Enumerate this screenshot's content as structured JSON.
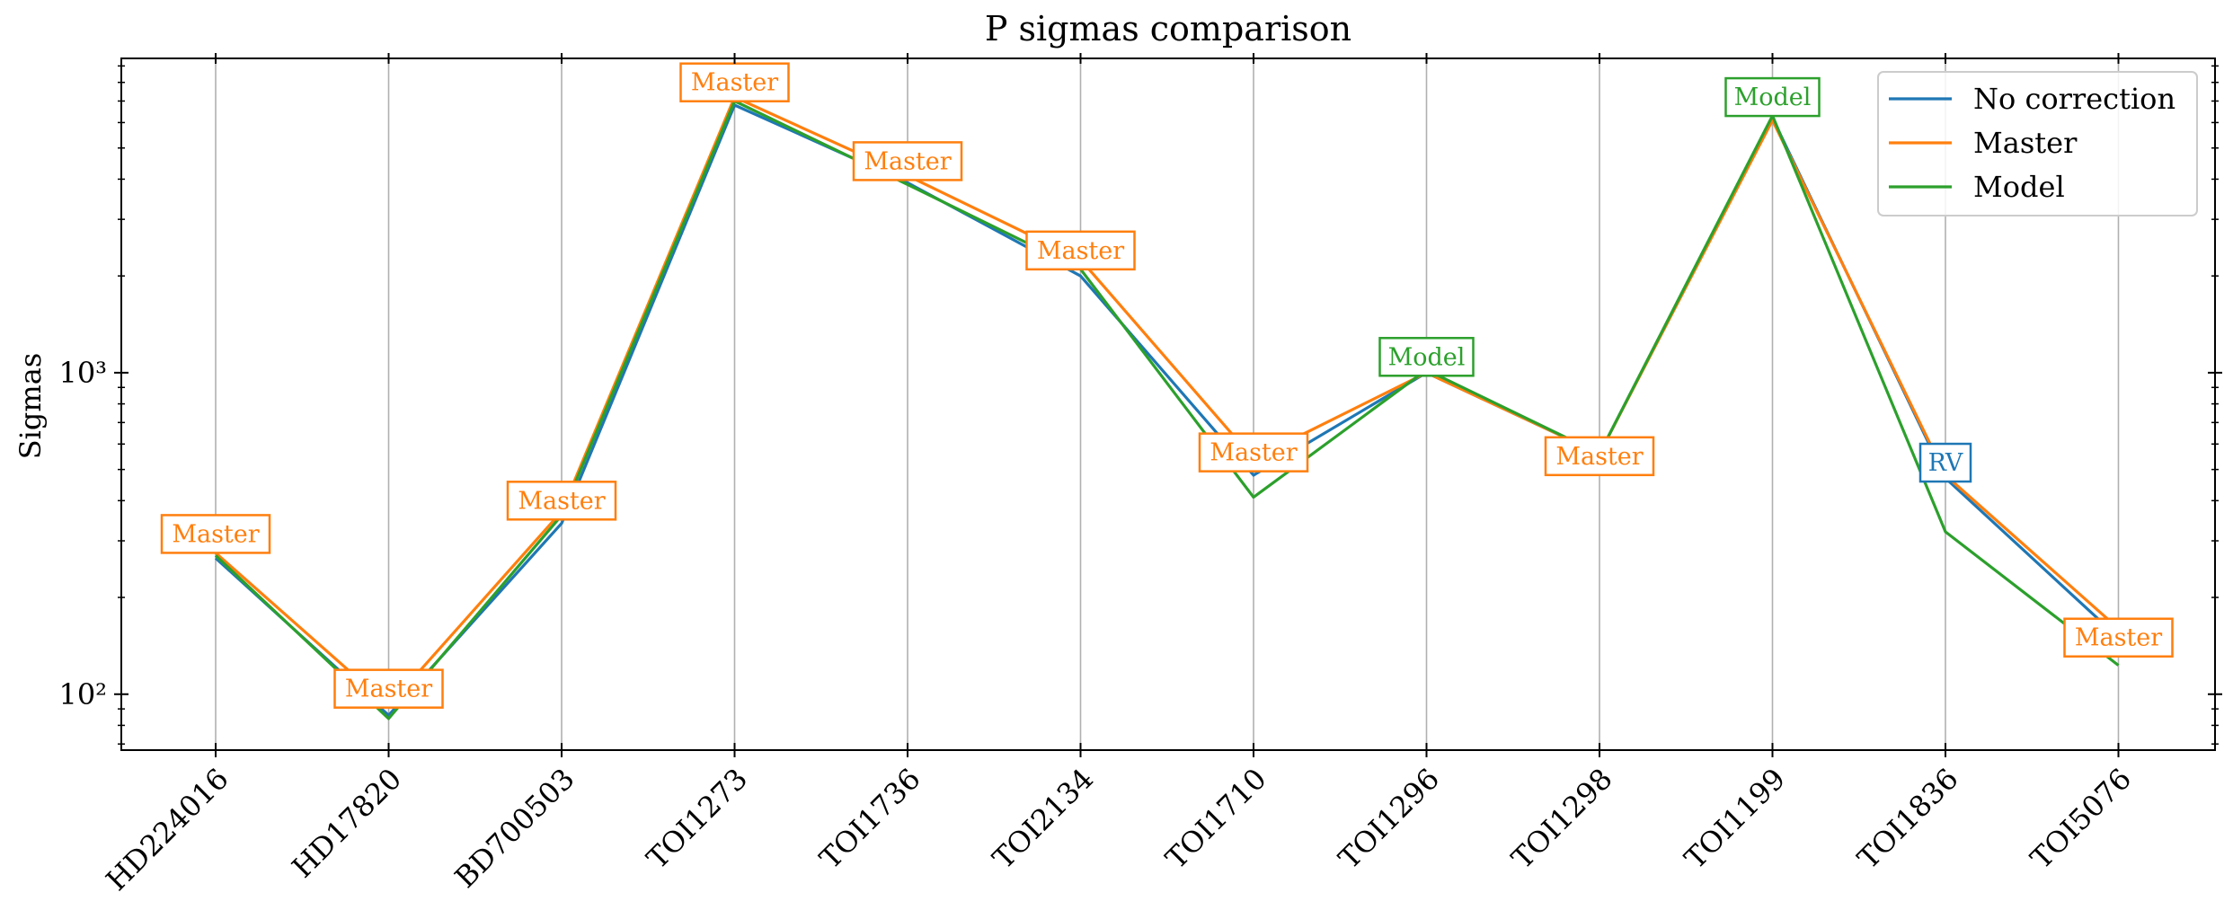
{
  "chart_data": {
    "type": "line",
    "title": "P sigmas comparison",
    "xlabel": "",
    "ylabel": "Sigmas",
    "yscale": "log",
    "ylim": [
      67,
      9500
    ],
    "yticks": [
      {
        "value": 100,
        "label": "10²"
      },
      {
        "value": 1000,
        "label": "10³"
      }
    ],
    "grid": "vertical",
    "legend_position": "top-right",
    "categories": [
      "HD224016",
      "HD17820",
      "BD700503",
      "TOI1273",
      "TOI1736",
      "TOI2134",
      "TOI1710",
      "TOI1296",
      "TOI1298",
      "TOI1199",
      "TOI1836",
      "TOI5076"
    ],
    "series": [
      {
        "name": "No correction",
        "color": "#1f77b4",
        "values": [
          265,
          86,
          340,
          6800,
          3900,
          2000,
          480,
          1000,
          560,
          6200,
          470,
          150
        ]
      },
      {
        "name": "Master",
        "color": "#ff7f0e",
        "values": [
          275,
          92,
          370,
          7200,
          4100,
          2250,
          540,
          1000,
          560,
          6100,
          480,
          160
        ]
      },
      {
        "name": "Model",
        "color": "#2ca02c",
        "values": [
          270,
          84,
          360,
          7000,
          3850,
          2100,
          410,
          1020,
          560,
          6300,
          320,
          123
        ]
      }
    ],
    "annotations": [
      {
        "category": "HD224016",
        "text": "Master",
        "color": "#ff7f0e",
        "y": 315
      },
      {
        "category": "HD17820",
        "text": "Master",
        "color": "#ff7f0e",
        "y": 104
      },
      {
        "category": "BD700503",
        "text": "Master",
        "color": "#ff7f0e",
        "y": 400
      },
      {
        "category": "TOI1273",
        "text": "Master",
        "color": "#ff7f0e",
        "y": 8000
      },
      {
        "category": "TOI1736",
        "text": "Master",
        "color": "#ff7f0e",
        "y": 4550
      },
      {
        "category": "TOI2134",
        "text": "Master",
        "color": "#ff7f0e",
        "y": 2400
      },
      {
        "category": "TOI1710",
        "text": "Master",
        "color": "#ff7f0e",
        "y": 565
      },
      {
        "category": "TOI1296",
        "text": "Model",
        "color": "#2ca02c",
        "y": 1120
      },
      {
        "category": "TOI1298",
        "text": "Master",
        "color": "#ff7f0e",
        "y": 550
      },
      {
        "category": "TOI1199",
        "text": "Model",
        "color": "#2ca02c",
        "y": 7200
      },
      {
        "category": "TOI1836",
        "text": "RV",
        "color": "#1f77b4",
        "y": 525
      },
      {
        "category": "TOI5076",
        "text": "Master",
        "color": "#ff7f0e",
        "y": 150
      }
    ]
  }
}
